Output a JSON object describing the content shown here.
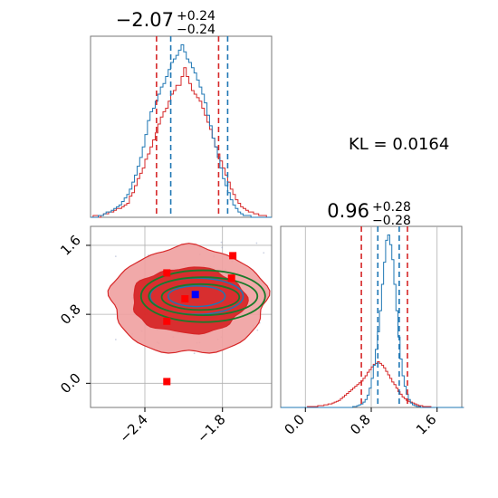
{
  "colors": {
    "red": "#d62728",
    "red_fill_dark": "#d62728",
    "red_fill_light": "#f0a0a0",
    "blue": "#1f77b4",
    "green": "#1a7a2a",
    "grid": "#b0b0b0",
    "marker_blue": "#0000ff",
    "marker_red": "#ff0000"
  },
  "annotation": {
    "kl_text": "KL = 0.0164"
  },
  "chart_data": [
    {
      "type": "histogram",
      "panel": "top-left",
      "title_main": "−2.07",
      "title_sup": "+0.24",
      "title_sub": "−0.24",
      "xlim": [
        -2.82,
        -1.42
      ],
      "grid": true,
      "quantile_lines": {
        "red": [
          -2.31,
          -1.83
        ],
        "blue": [
          -2.2,
          -1.76
        ]
      },
      "bin_edges_start": -2.82,
      "bin_width": 0.02,
      "series": [
        {
          "color_key": "red",
          "values": [
            0,
            1,
            1,
            0,
            1,
            2,
            2,
            3,
            3,
            4,
            5,
            5,
            6,
            7,
            8,
            12,
            14,
            18,
            22,
            25,
            28,
            33,
            36,
            40,
            44,
            48,
            53,
            57,
            60,
            62,
            66,
            70,
            72,
            75,
            75,
            80,
            85,
            80,
            76,
            72,
            70,
            68,
            66,
            62,
            58,
            54,
            50,
            45,
            40,
            36,
            32,
            28,
            24,
            20,
            16,
            13,
            10,
            8,
            6,
            5,
            4,
            3,
            3,
            2,
            2,
            1,
            1,
            1,
            0,
            0
          ]
        },
        {
          "color_key": "blue",
          "values": [
            0,
            0,
            0,
            1,
            1,
            2,
            3,
            3,
            4,
            5,
            6,
            7,
            9,
            11,
            13,
            16,
            20,
            24,
            29,
            34,
            40,
            47,
            55,
            60,
            62,
            66,
            70,
            74,
            76,
            80,
            84,
            88,
            90,
            92,
            95,
            98,
            94,
            90,
            88,
            85,
            82,
            78,
            74,
            70,
            65,
            58,
            52,
            45,
            40,
            34,
            28,
            22,
            18,
            14,
            10,
            7,
            5,
            3,
            2,
            1,
            1,
            1,
            0,
            0,
            0,
            0,
            0,
            0,
            0,
            0
          ]
        }
      ]
    },
    {
      "type": "histogram",
      "panel": "bottom-right",
      "title_main": "0.96",
      "title_sup": "+0.28",
      "title_sub": "−0.28",
      "xlim": [
        -0.3,
        1.9
      ],
      "xticks": [
        "0.0",
        "0.8",
        "1.6"
      ],
      "xtick_values": [
        0.0,
        0.8,
        1.6
      ],
      "grid": true,
      "quantile_lines": {
        "red": [
          0.68,
          1.24
        ],
        "blue": [
          0.88,
          1.14
        ]
      },
      "bin_edges_start": -0.3,
      "bin_width": 0.025,
      "series": [
        {
          "color_key": "red",
          "values": [
            0,
            0,
            0,
            0,
            0,
            0,
            0,
            0,
            0,
            0,
            0,
            0,
            0,
            1,
            1,
            1,
            1,
            1,
            2,
            2,
            2,
            3,
            3,
            4,
            4,
            5,
            6,
            7,
            8,
            10,
            12,
            14,
            16,
            18,
            20,
            22,
            24,
            26,
            28,
            30,
            33,
            36,
            40,
            43,
            46,
            49,
            50,
            52,
            50,
            48,
            45,
            41,
            37,
            33,
            29,
            26,
            22,
            18,
            15,
            12,
            10,
            8,
            7,
            6,
            5,
            4,
            3,
            2,
            2,
            1,
            1,
            1,
            1,
            0,
            0,
            0,
            0,
            0,
            0,
            0,
            0,
            0,
            0,
            0,
            0,
            0,
            0,
            0,
            0
          ]
        },
        {
          "color_key": "blue",
          "values": [
            0,
            0,
            0,
            0,
            0,
            0,
            0,
            0,
            0,
            0,
            0,
            0,
            0,
            0,
            0,
            0,
            0,
            0,
            0,
            0,
            0,
            0,
            0,
            0,
            0,
            0,
            0,
            0,
            0,
            0,
            0,
            0,
            0,
            0,
            0,
            1,
            1,
            2,
            3,
            4,
            6,
            9,
            14,
            22,
            33,
            48,
            66,
            86,
            110,
            140,
            165,
            190,
            196,
            185,
            168,
            140,
            110,
            80,
            55,
            36,
            24,
            15,
            9,
            5,
            3,
            2,
            1,
            1,
            0,
            0,
            0,
            0,
            0,
            0,
            0,
            0,
            0,
            0,
            0,
            0,
            0,
            0,
            0,
            0,
            0,
            0,
            0,
            0,
            0
          ]
        }
      ]
    },
    {
      "type": "scatter-contour",
      "panel": "bottom-left",
      "xlim": [
        -2.82,
        -1.42
      ],
      "ylim": [
        -0.28,
        1.82
      ],
      "xticks": [
        "−2.4",
        "−1.8"
      ],
      "xtick_values": [
        -2.4,
        -1.8
      ],
      "yticks": [
        "0.0",
        "0.8",
        "1.6"
      ],
      "ytick_values": [
        0.0,
        0.8,
        1.6
      ],
      "grid": true,
      "red_markers": [
        {
          "x": -1.72,
          "y": 1.48
        },
        {
          "x": -2.23,
          "y": 0.02
        },
        {
          "x": -2.23,
          "y": 1.28
        },
        {
          "x": -2.09,
          "y": 0.98
        },
        {
          "x": -2.23,
          "y": 0.72
        },
        {
          "x": -1.73,
          "y": 1.22
        }
      ],
      "blue_markers": [
        {
          "x": -2.01,
          "y": 1.03
        }
      ],
      "green_ellipses": [
        {
          "cx": -1.95,
          "cy": 1.01,
          "rx": 0.42,
          "ry": 0.22
        },
        {
          "cx": -1.95,
          "cy": 1.01,
          "rx": 0.48,
          "ry": 0.3
        },
        {
          "cx": -1.97,
          "cy": 1.0,
          "rx": 0.3,
          "ry": 0.15
        }
      ],
      "blue_ellipses": [
        {
          "cx": -2.0,
          "cy": 1.01,
          "rx": 0.36,
          "ry": 0.21
        },
        {
          "cx": -2.0,
          "cy": 1.01,
          "rx": 0.22,
          "ry": 0.12
        }
      ],
      "red_contours": [
        {
          "level": "outer",
          "cx": -2.06,
          "cy": 0.96,
          "rx": 0.6,
          "ry": 0.62
        },
        {
          "level": "inner",
          "cx": -2.06,
          "cy": 0.96,
          "rx": 0.44,
          "ry": 0.38
        }
      ]
    }
  ]
}
